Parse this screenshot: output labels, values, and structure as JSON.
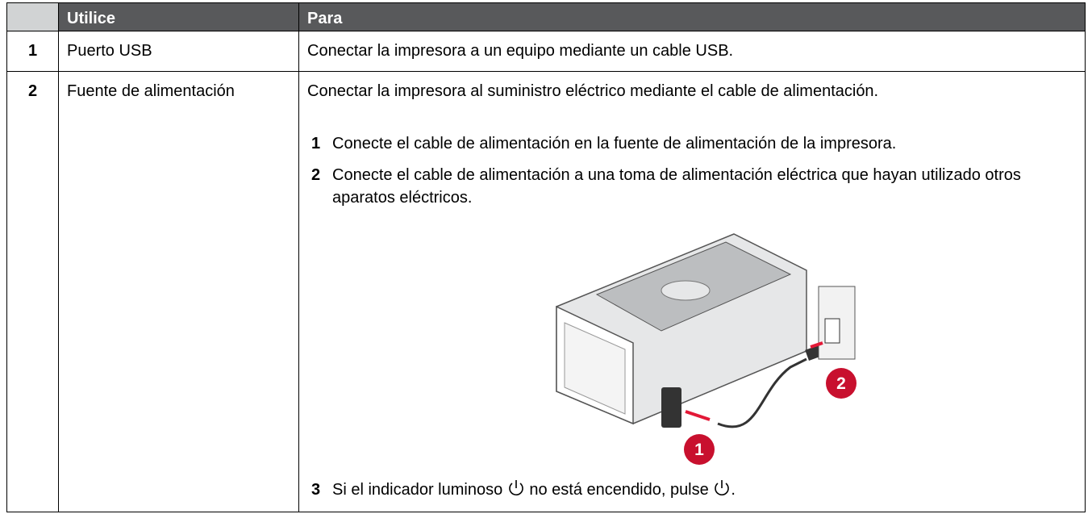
{
  "table": {
    "header": [
      "Utilice",
      "Para"
    ],
    "rows": [
      {
        "number": "1",
        "label": "Puerto USB",
        "description": "Conectar la impresora a un equipo mediante un cable USB."
      },
      {
        "number": "2",
        "label": "Fuente de alimentación",
        "description": "Conectar la impresora al suministro eléctrico mediante el cable de alimentación.",
        "steps": [
          {
            "number": "1",
            "text": "Conecte el cable de alimentación en la fuente de alimentación de la impresora."
          },
          {
            "number": "2",
            "text": "Conecte el cable de alimentación a una toma de alimentación eléctrica que hayan utilizado otros aparatos eléctricos."
          },
          {
            "number": "3",
            "parts": [
              "Si el indicador luminoso",
              "no está encendido, pulse",
              "."
            ]
          }
        ],
        "figure": {
          "callouts": [
            "1",
            "2"
          ]
        }
      }
    ]
  }
}
